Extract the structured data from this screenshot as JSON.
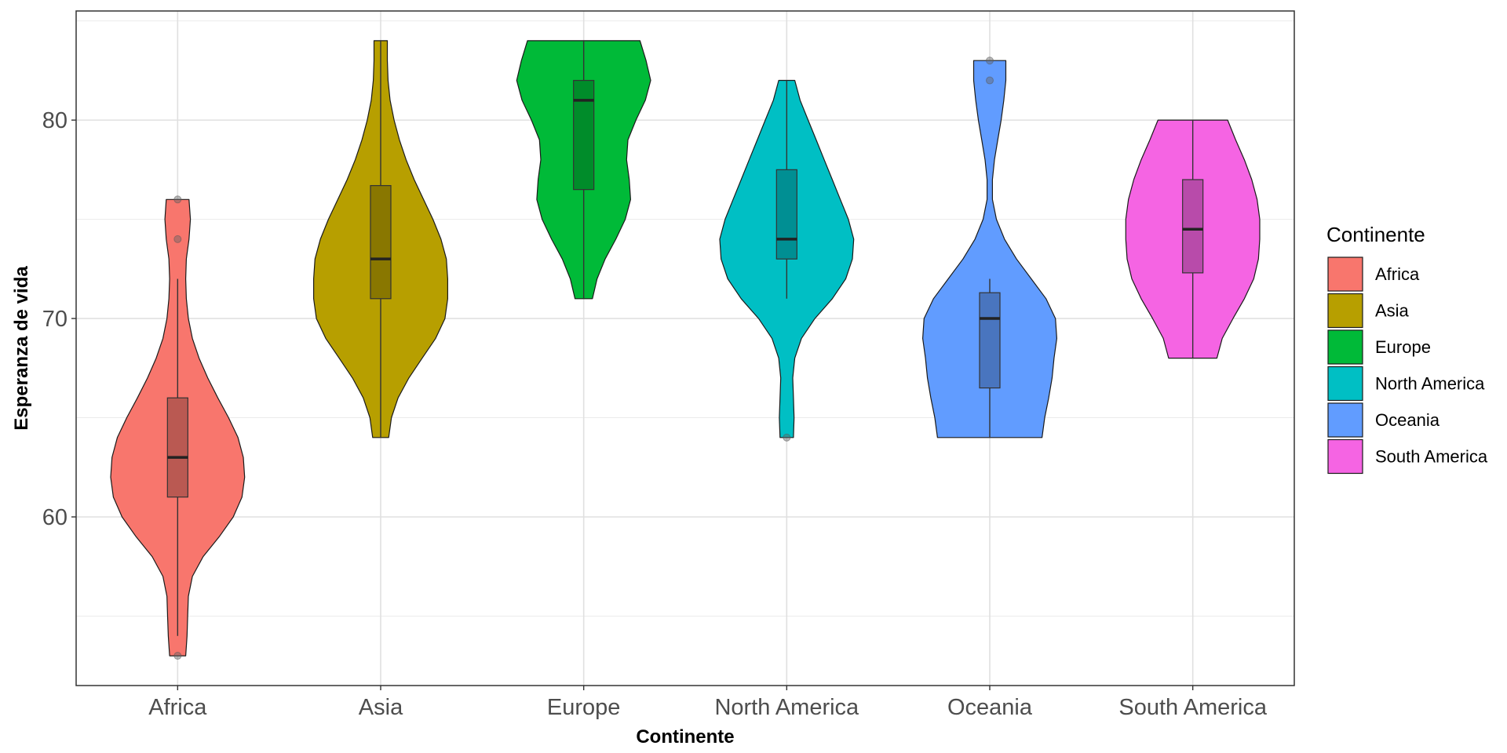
{
  "chart_data": {
    "type": "violin",
    "xlabel": "Continente",
    "ylabel": "Esperanza de vida",
    "ylim": [
      51.5,
      85.5
    ],
    "yticks": [
      60,
      70,
      80
    ],
    "grid": true,
    "legend": {
      "title": "Continente",
      "position": "right"
    },
    "categories": [
      "Africa",
      "Asia",
      "Europe",
      "North America",
      "Oceania",
      "South America"
    ],
    "series": [
      {
        "name": "Africa",
        "color": "#F8766D",
        "violin_range": [
          53,
          76
        ],
        "density_profile": [
          [
            53,
            0.12
          ],
          [
            54,
            0.14
          ],
          [
            55,
            0.15
          ],
          [
            56,
            0.16
          ],
          [
            57,
            0.22
          ],
          [
            58,
            0.38
          ],
          [
            59,
            0.62
          ],
          [
            60,
            0.83
          ],
          [
            61,
            0.96
          ],
          [
            62,
            1.0
          ],
          [
            63,
            0.98
          ],
          [
            64,
            0.9
          ],
          [
            65,
            0.76
          ],
          [
            66,
            0.6
          ],
          [
            67,
            0.45
          ],
          [
            68,
            0.32
          ],
          [
            69,
            0.22
          ],
          [
            70,
            0.16
          ],
          [
            71,
            0.13
          ],
          [
            72,
            0.12
          ],
          [
            73,
            0.13
          ],
          [
            74,
            0.17
          ],
          [
            75,
            0.19
          ],
          [
            76,
            0.17
          ]
        ],
        "box": {
          "whisker_low": 54,
          "q1": 61,
          "median": 63,
          "q3": 66,
          "whisker_high": 72
        },
        "outliers": [
          53,
          74,
          76
        ]
      },
      {
        "name": "Asia",
        "color": "#B79F00",
        "violin_range": [
          64,
          84
        ],
        "density_profile": [
          [
            64,
            0.12
          ],
          [
            65,
            0.16
          ],
          [
            66,
            0.26
          ],
          [
            67,
            0.42
          ],
          [
            68,
            0.62
          ],
          [
            69,
            0.82
          ],
          [
            70,
            0.96
          ],
          [
            71,
            1.0
          ],
          [
            72,
            1.0
          ],
          [
            73,
            0.98
          ],
          [
            74,
            0.9
          ],
          [
            75,
            0.78
          ],
          [
            76,
            0.64
          ],
          [
            77,
            0.5
          ],
          [
            78,
            0.38
          ],
          [
            79,
            0.28
          ],
          [
            80,
            0.2
          ],
          [
            81,
            0.14
          ],
          [
            82,
            0.11
          ],
          [
            83,
            0.1
          ],
          [
            84,
            0.1
          ]
        ],
        "box": {
          "whisker_low": 64,
          "q1": 71,
          "median": 73,
          "q3": 76.7,
          "whisker_high": 84
        },
        "outliers": []
      },
      {
        "name": "Europe",
        "color": "#00BA38",
        "violin_range": [
          71,
          84
        ],
        "density_profile": [
          [
            71,
            0.13
          ],
          [
            72,
            0.2
          ],
          [
            73,
            0.32
          ],
          [
            74,
            0.48
          ],
          [
            75,
            0.62
          ],
          [
            76,
            0.7
          ],
          [
            77,
            0.68
          ],
          [
            78,
            0.64
          ],
          [
            79,
            0.66
          ],
          [
            80,
            0.78
          ],
          [
            81,
            0.92
          ],
          [
            82,
            1.0
          ],
          [
            83,
            0.93
          ],
          [
            84,
            0.84
          ]
        ],
        "box": {
          "whisker_low": 71,
          "q1": 76.5,
          "median": 81,
          "q3": 82,
          "whisker_high": 84
        },
        "outliers": []
      },
      {
        "name": "North America",
        "color": "#00BFC4",
        "violin_range": [
          64,
          82
        ],
        "density_profile": [
          [
            64,
            0.1
          ],
          [
            65,
            0.11
          ],
          [
            66,
            0.1
          ],
          [
            67,
            0.09
          ],
          [
            68,
            0.12
          ],
          [
            69,
            0.22
          ],
          [
            70,
            0.42
          ],
          [
            71,
            0.68
          ],
          [
            72,
            0.88
          ],
          [
            73,
            0.98
          ],
          [
            74,
            1.0
          ],
          [
            75,
            0.92
          ],
          [
            76,
            0.8
          ],
          [
            77,
            0.68
          ],
          [
            78,
            0.56
          ],
          [
            79,
            0.44
          ],
          [
            80,
            0.32
          ],
          [
            81,
            0.2
          ],
          [
            82,
            0.12
          ]
        ],
        "box": {
          "whisker_low": 71,
          "q1": 73,
          "median": 74,
          "q3": 77.5,
          "whisker_high": 82
        },
        "outliers": [
          64
        ]
      },
      {
        "name": "Oceania",
        "color": "#619CFF",
        "violin_range": [
          64,
          83
        ],
        "density_profile": [
          [
            64,
            0.78
          ],
          [
            65,
            0.82
          ],
          [
            66,
            0.88
          ],
          [
            67,
            0.93
          ],
          [
            68,
            0.96
          ],
          [
            69,
            1.0
          ],
          [
            70,
            0.98
          ],
          [
            71,
            0.84
          ],
          [
            72,
            0.62
          ],
          [
            73,
            0.4
          ],
          [
            74,
            0.22
          ],
          [
            75,
            0.1
          ],
          [
            76,
            0.04
          ],
          [
            77,
            0.04
          ],
          [
            78,
            0.07
          ],
          [
            79,
            0.12
          ],
          [
            80,
            0.17
          ],
          [
            81,
            0.21
          ],
          [
            82,
            0.24
          ],
          [
            83,
            0.24
          ]
        ],
        "box": {
          "whisker_low": 64,
          "q1": 66.5,
          "median": 70,
          "q3": 71.3,
          "whisker_high": 72
        },
        "outliers": [
          82,
          83
        ]
      },
      {
        "name": "South America",
        "color": "#F564E3",
        "violin_range": [
          68,
          80
        ],
        "density_profile": [
          [
            68,
            0.36
          ],
          [
            69,
            0.44
          ],
          [
            70,
            0.6
          ],
          [
            71,
            0.77
          ],
          [
            72,
            0.91
          ],
          [
            73,
            0.98
          ],
          [
            74,
            1.0
          ],
          [
            75,
            1.0
          ],
          [
            76,
            0.96
          ],
          [
            77,
            0.88
          ],
          [
            78,
            0.77
          ],
          [
            79,
            0.64
          ],
          [
            80,
            0.52
          ]
        ],
        "box": {
          "whisker_low": 68,
          "q1": 72.3,
          "median": 74.5,
          "q3": 77,
          "whisker_high": 80
        },
        "outliers": []
      }
    ]
  }
}
